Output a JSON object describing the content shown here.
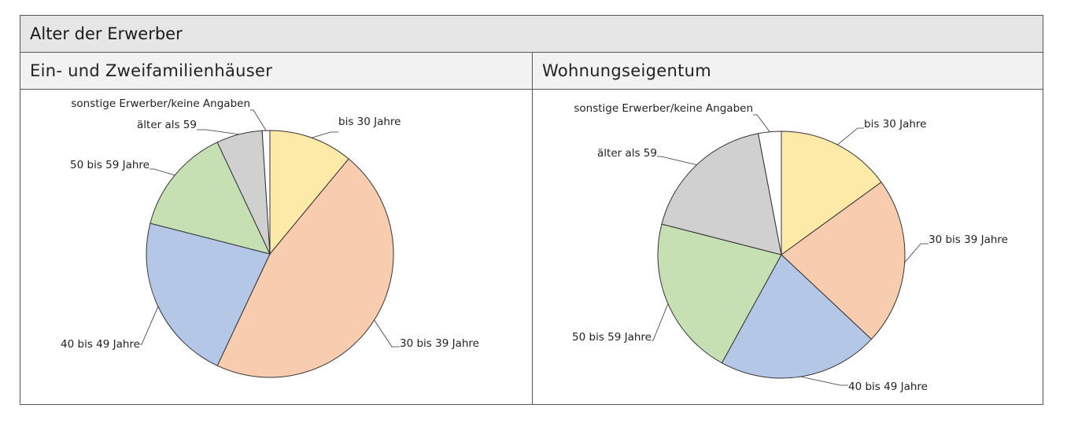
{
  "header": {
    "title": "Alter der Erwerber"
  },
  "panels": [
    {
      "title": "Ein- und Zweifamilienhäuser"
    },
    {
      "title": "Wohnungseigentum"
    }
  ],
  "chart_data": [
    {
      "type": "pie",
      "title": "Ein- und Zweifamilienhäuser",
      "start": "12 o'clock, clockwise",
      "slices": [
        {
          "label": "bis 30 Jahre",
          "value": 11,
          "color": "#fde9a8"
        },
        {
          "label": "30 bis 39 Jahre",
          "value": 46,
          "color": "#f8ccae"
        },
        {
          "label": "40 bis 49 Jahre",
          "value": 22,
          "color": "#b5c7e7"
        },
        {
          "label": "50 bis 59 Jahre",
          "value": 14,
          "color": "#c6e0b4"
        },
        {
          "label": "älter als 59",
          "value": 6,
          "color": "#d0d0d0"
        },
        {
          "label": "sonstige Erwerber/keine Angaben",
          "value": 1,
          "color": "#ffffff"
        }
      ]
    },
    {
      "type": "pie",
      "title": "Wohnungseigentum",
      "start": "12 o'clock, clockwise",
      "slices": [
        {
          "label": "bis 30 Jahre",
          "value": 15,
          "color": "#fde9a8"
        },
        {
          "label": "30 bis 39 Jahre",
          "value": 22,
          "color": "#f8ccae"
        },
        {
          "label": "40 bis 49 Jahre",
          "value": 21,
          "color": "#b5c7e7"
        },
        {
          "label": "50 bis 59 Jahre",
          "value": 21,
          "color": "#c6e0b4"
        },
        {
          "label": "älter als 59",
          "value": 18,
          "color": "#d0d0d0"
        },
        {
          "label": "sonstige Erwerber/keine Angaben",
          "value": 3,
          "color": "#ffffff"
        }
      ]
    }
  ]
}
